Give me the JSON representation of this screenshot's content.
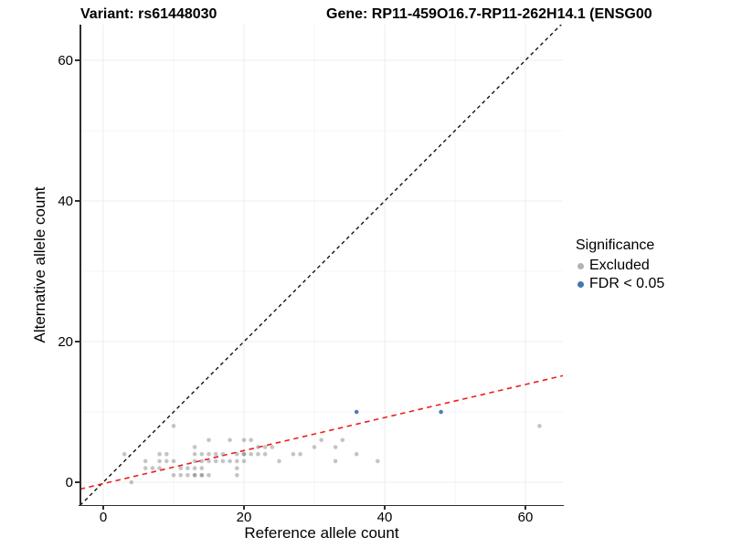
{
  "title": {
    "variant": "Variant: rs61448030",
    "gene": "Gene: RP11-459O16.7-RP11-262H14.1 (ENSG00"
  },
  "legend": {
    "title": "Significance",
    "items": [
      {
        "label": "Excluded",
        "color": "#b3b3b3"
      },
      {
        "label": "FDR < 0.05",
        "color": "#4377ad"
      }
    ]
  },
  "colors": {
    "excluded_point": "#7d7d7d",
    "fdr_point": "#4377ad",
    "identity_line": "#000000",
    "fit_line": "#ef1c1c",
    "axis_line": "#2e2e2e",
    "major_grid": "#ececec",
    "minor_grid": "#f4f4f4"
  },
  "chart_data": {
    "type": "scatter",
    "title": "Variant: rs61448030   Gene: RP11-459O16.7-RP11-262H14.1 (ENSG00",
    "xlabel": "Reference allele count",
    "ylabel": "Alternative allele count",
    "xlim": [
      -3.3,
      65.4
    ],
    "ylim": [
      -3.3,
      65.1
    ],
    "x_ticks": [
      0,
      20,
      40,
      60
    ],
    "y_ticks": [
      0,
      20,
      40,
      60
    ],
    "x_minor": [
      10,
      30,
      50
    ],
    "y_minor": [
      10,
      30,
      50
    ],
    "grid": "faint major and minor gridlines, white background",
    "legend_position": "right",
    "series": [
      {
        "name": "Excluded",
        "color": "#7d7d7d",
        "opacity": 0.45,
        "points": [
          [
            3,
            4
          ],
          [
            4,
            0
          ],
          [
            6,
            2
          ],
          [
            6,
            3
          ],
          [
            7,
            2
          ],
          [
            8,
            2
          ],
          [
            8,
            3
          ],
          [
            8,
            4
          ],
          [
            9,
            3
          ],
          [
            9,
            4
          ],
          [
            10,
            1
          ],
          [
            10,
            3
          ],
          [
            10,
            8
          ],
          [
            11,
            1
          ],
          [
            11,
            2
          ],
          [
            12,
            1
          ],
          [
            12,
            2
          ],
          [
            13,
            1
          ],
          [
            13,
            1
          ],
          [
            13,
            2
          ],
          [
            13,
            3
          ],
          [
            13,
            4
          ],
          [
            13,
            5
          ],
          [
            14,
            1
          ],
          [
            14,
            1
          ],
          [
            14,
            2
          ],
          [
            14,
            3
          ],
          [
            14,
            4
          ],
          [
            15,
            1
          ],
          [
            15,
            3
          ],
          [
            15,
            4
          ],
          [
            15,
            6
          ],
          [
            16,
            3
          ],
          [
            16,
            4
          ],
          [
            17,
            3
          ],
          [
            17,
            4
          ],
          [
            18,
            3
          ],
          [
            18,
            6
          ],
          [
            19,
            1
          ],
          [
            19,
            2
          ],
          [
            19,
            3
          ],
          [
            19,
            4
          ],
          [
            20,
            3
          ],
          [
            20,
            4
          ],
          [
            20,
            4
          ],
          [
            20,
            6
          ],
          [
            21,
            4
          ],
          [
            21,
            6
          ],
          [
            22,
            4
          ],
          [
            22,
            5
          ],
          [
            23,
            4
          ],
          [
            23,
            5
          ],
          [
            24,
            5
          ],
          [
            25,
            3
          ],
          [
            27,
            4
          ],
          [
            28,
            4
          ],
          [
            30,
            5
          ],
          [
            31,
            6
          ],
          [
            33,
            3
          ],
          [
            33,
            5
          ],
          [
            34,
            6
          ],
          [
            36,
            4
          ],
          [
            39,
            3
          ],
          [
            62,
            8
          ]
        ]
      },
      {
        "name": "FDR < 0.05",
        "color": "#4377ad",
        "opacity": 0.95,
        "points": [
          [
            36,
            10
          ],
          [
            48,
            10
          ]
        ]
      }
    ],
    "lines": [
      {
        "name": "identity",
        "slope": 1,
        "intercept": 0,
        "style": "dashed",
        "color": "#000000"
      },
      {
        "name": "fit",
        "slope": 0.235,
        "intercept": -0.2,
        "style": "dashed",
        "color": "#ef1c1c"
      }
    ]
  }
}
